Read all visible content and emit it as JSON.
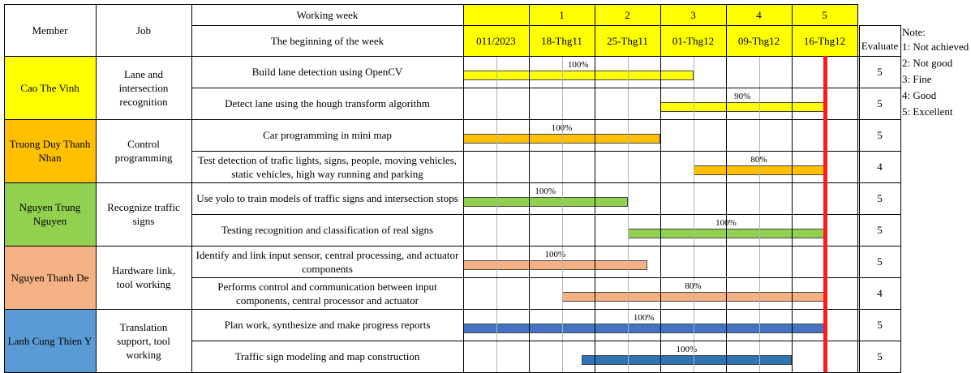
{
  "header": {
    "member": "Member",
    "job": "Job",
    "working_week": "Working week",
    "beginning": "The beginning of the week",
    "evaluate": "Evaluate"
  },
  "weeks": [
    {
      "num": "",
      "start": "011/2023"
    },
    {
      "num": "1",
      "start": "18-Thg11"
    },
    {
      "num": "2",
      "start": "25-Thg11"
    },
    {
      "num": "3",
      "start": "01-Thg12"
    },
    {
      "num": "4",
      "start": "09-Thg12"
    },
    {
      "num": "5",
      "start": "16-Thg12"
    }
  ],
  "colors": {
    "header_yellow": "#ffff00",
    "current_week_marker": "#ff1a1a"
  },
  "members": [
    {
      "name": "Cao The Vinh",
      "job": "Lane and intersection recognition",
      "color": "#ffff00",
      "tasks": [
        {
          "label": "Build lane detection using OpenCV",
          "percent": "100%",
          "start": 0,
          "end": 3.5,
          "bar_color": "#ffff00",
          "evaluate": "5"
        },
        {
          "label": "Detect lane using the hough transform algorithm",
          "percent": "90%",
          "start": 3.0,
          "end": 5.5,
          "bar_color": "#ffff00",
          "evaluate": "5"
        }
      ]
    },
    {
      "name": "Truong Duy Thanh Nhan",
      "job": "Control programming",
      "color": "#ffc000",
      "tasks": [
        {
          "label": "Car programming in mini map",
          "percent": "100%",
          "start": 0,
          "end": 3.0,
          "bar_color": "#ffc000",
          "evaluate": "5"
        },
        {
          "label": "Test detection of trafic lights, signs, people, moving vehicles, static vehicles, high way running and parking",
          "percent": "80%",
          "start": 3.5,
          "end": 5.5,
          "bar_color": "#ffc000",
          "evaluate": "4"
        }
      ]
    },
    {
      "name": "Nguyen Trung Nguyen",
      "job": "Recognize traffic signs",
      "color": "#92d050",
      "tasks": [
        {
          "label": "Use yolo to train models of traffic signs and intersection stops",
          "percent": "100%",
          "start": 0,
          "end": 2.5,
          "bar_color": "#92d050",
          "evaluate": "5"
        },
        {
          "label": "Testing recognition and classification of real signs",
          "percent": "100%",
          "start": 2.5,
          "end": 5.5,
          "bar_color": "#92d050",
          "evaluate": "5"
        }
      ]
    },
    {
      "name": "Nguyen Thanh De",
      "job": "Hardware link, tool working",
      "color": "#f4b183",
      "tasks": [
        {
          "label": "Identify and link input sensor, central processing, and actuator components",
          "percent": "100%",
          "start": 0,
          "end": 2.8,
          "bar_color": "#f4b183",
          "evaluate": "5"
        },
        {
          "label": "Performs control and communication between input components, central processor and actuator",
          "percent": "80%",
          "start": 1.5,
          "end": 5.5,
          "bar_color": "#f4b183",
          "evaluate": "4"
        }
      ]
    },
    {
      "name": "Lanh Cung Thien Y",
      "job": "Translation support, tool working",
      "color": "#5b9bd5",
      "tasks": [
        {
          "label": "Plan work, synthesize and make progress reports",
          "percent": "100%",
          "start": 0,
          "end": 5.5,
          "bar_color": "#4472c4",
          "evaluate": "5"
        },
        {
          "label": "Traffic sign modeling and map construction",
          "percent": "100%",
          "start": 1.8,
          "end": 5.0,
          "bar_color": "#2e75b6",
          "evaluate": "5"
        }
      ]
    }
  ],
  "current_week_position": 5.5,
  "notes": {
    "title": "Note:",
    "items": [
      "1: Not achieved",
      "2: Not good",
      "3: Fine",
      "4: Good",
      "5: Excellent"
    ]
  }
}
